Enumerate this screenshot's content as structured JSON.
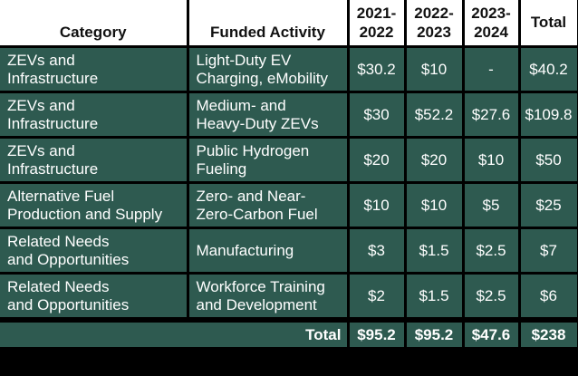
{
  "headers": [
    "Category",
    "Funded Activity",
    "2021-\n2022",
    "2022-\n2023",
    "2023-\n2024",
    "Total"
  ],
  "rows": [
    [
      "ZEVs and\nInfrastructure",
      "Light-Duty EV\nCharging, eMobility",
      "$30.2",
      "$10",
      "-",
      "$40.2"
    ],
    [
      "ZEVs and\nInfrastructure",
      "Medium- and\nHeavy-Duty ZEVs",
      "$30",
      "$52.2",
      "$27.6",
      "$109.8"
    ],
    [
      "ZEVs and\nInfrastructure",
      "Public Hydrogen\nFueling",
      "$20",
      "$20",
      "$10",
      "$50"
    ],
    [
      "Alternative Fuel\nProduction and Supply",
      "Zero- and Near-\nZero-Carbon Fuel",
      "$10",
      "$10",
      "$5",
      "$25"
    ],
    [
      "Related Needs\nand Opportunities",
      "Manufacturing",
      "$3",
      "$1.5",
      "$2.5",
      "$7"
    ],
    [
      "Related Needs\nand Opportunities",
      "Workforce Training\nand Development",
      "$2",
      "$1.5",
      "$2.5",
      "$6"
    ]
  ],
  "total_row": {
    "label": "Total",
    "values": [
      "$95.2",
      "$95.2",
      "$47.6",
      "$238"
    ]
  },
  "colors": {
    "header_bg": "#ffffff",
    "body_bg": "#2e5a50",
    "grid": "#000000"
  }
}
